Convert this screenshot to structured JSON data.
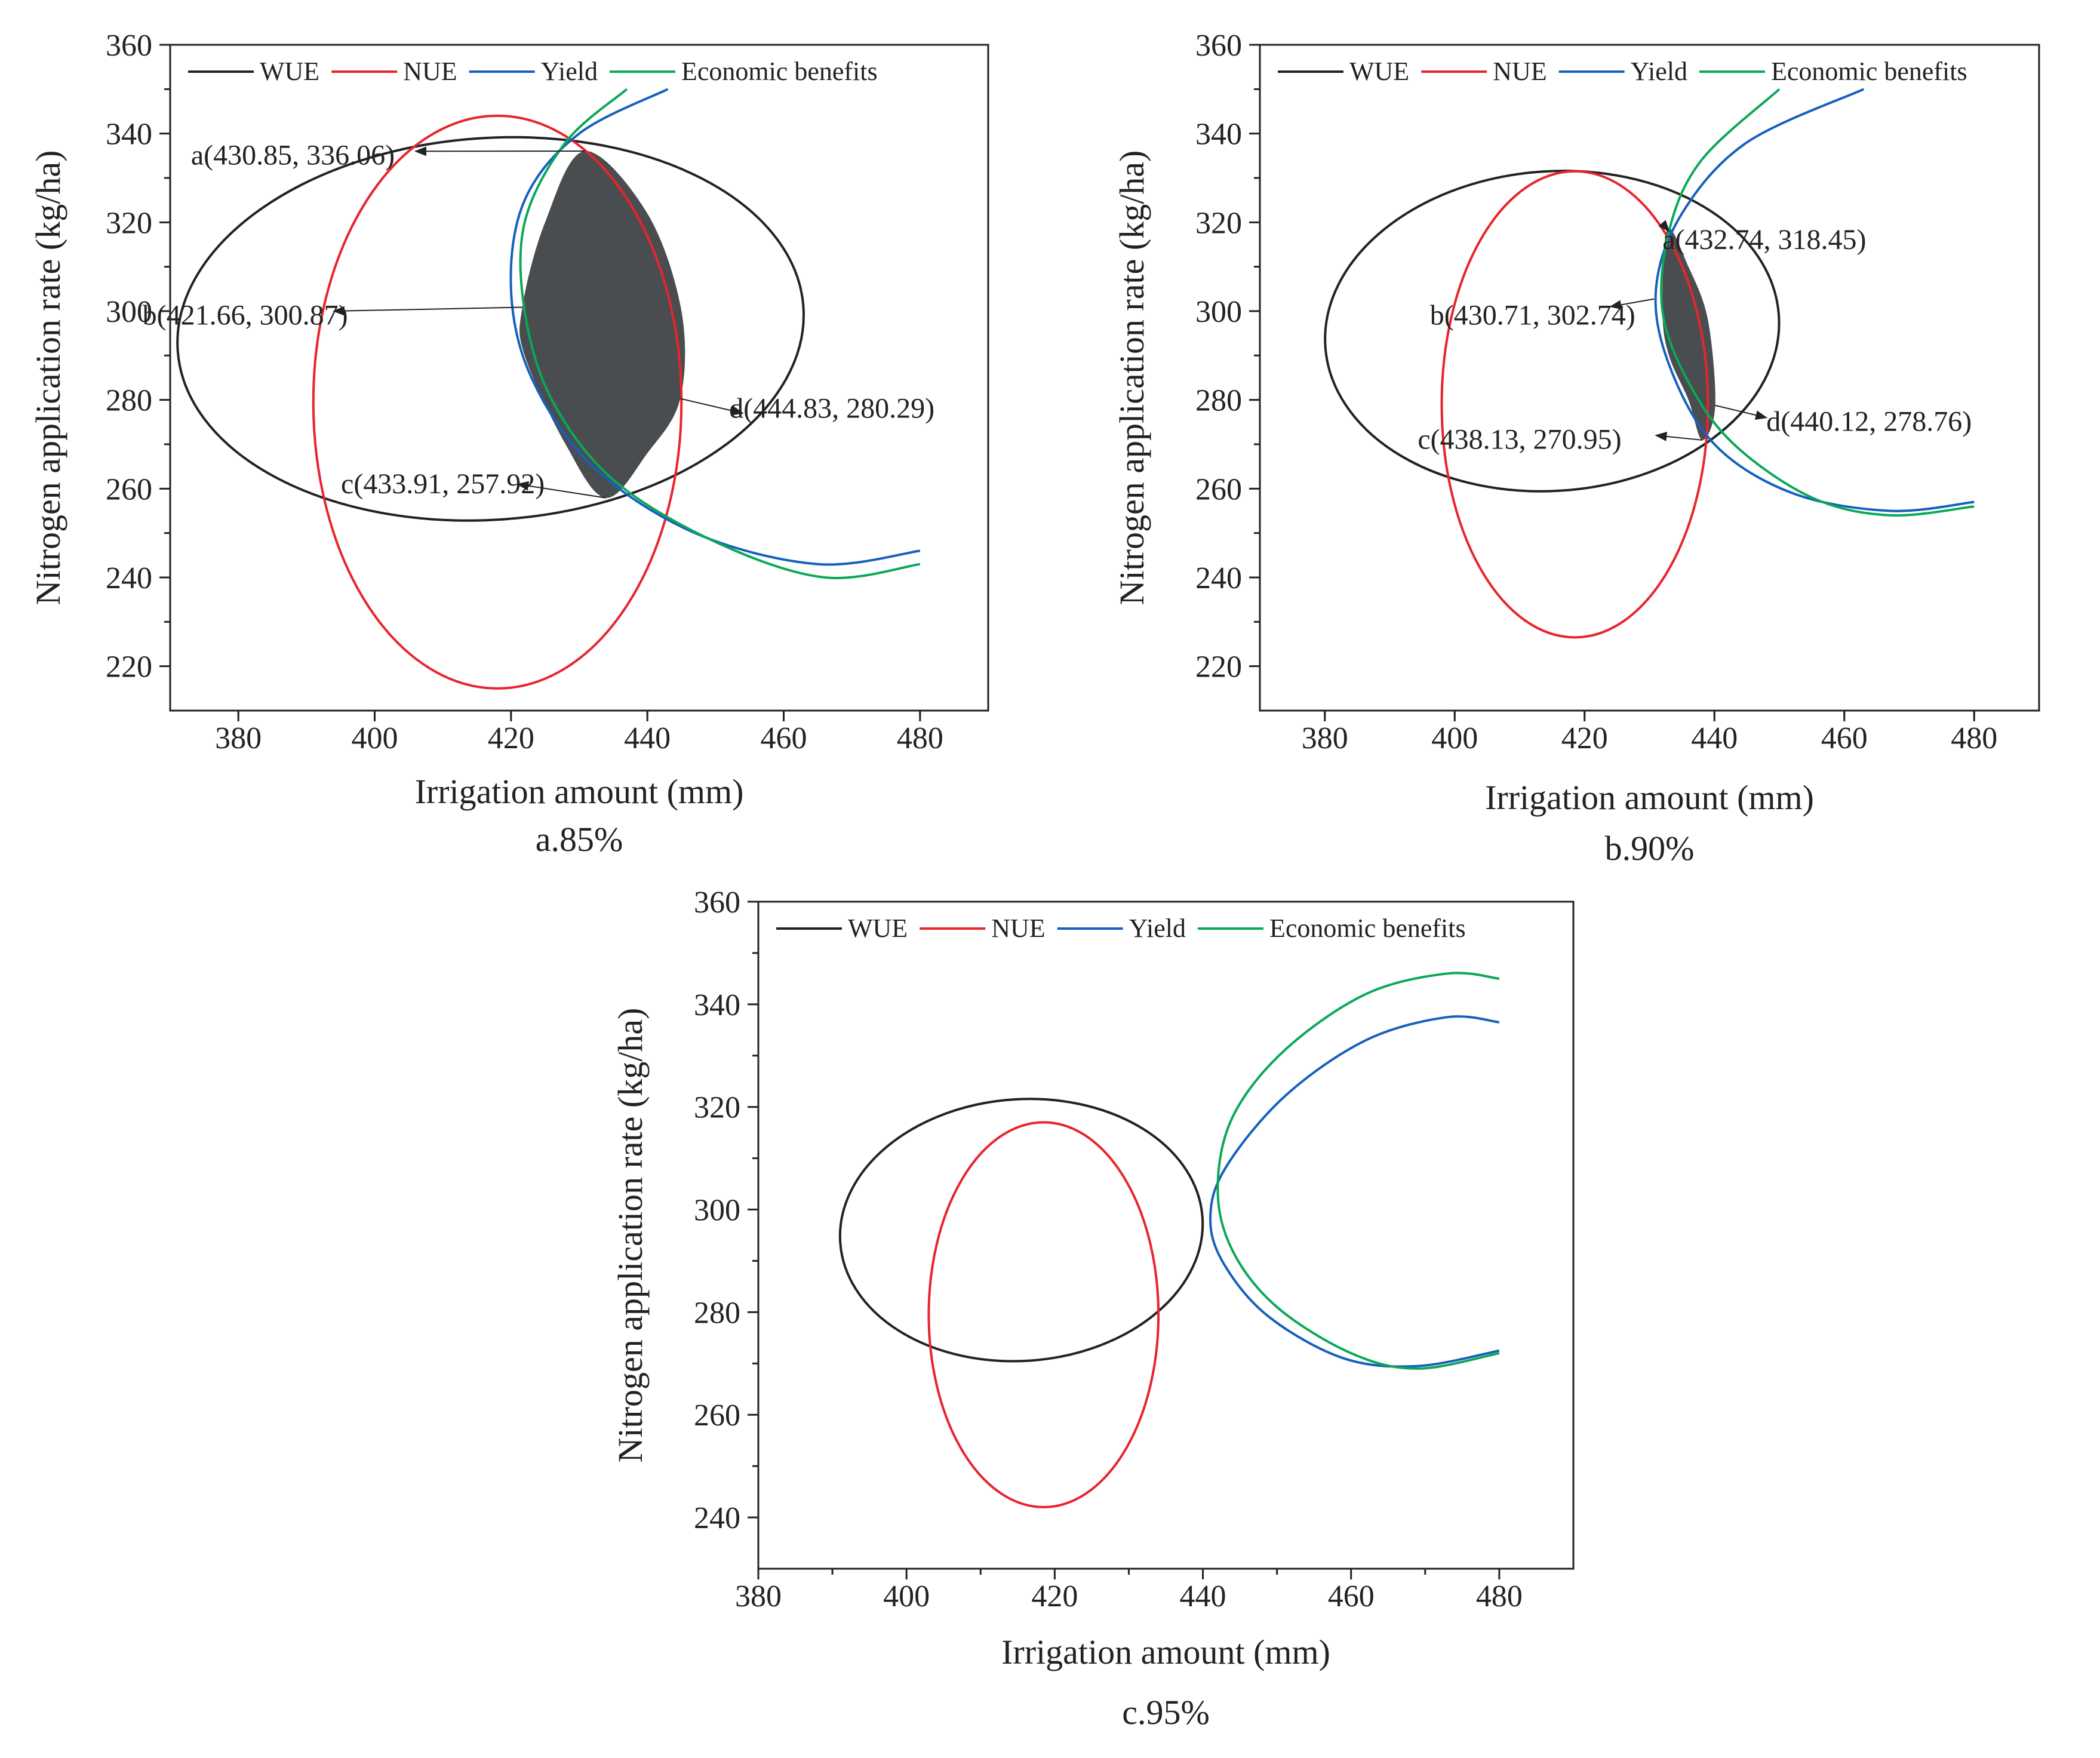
{
  "chart_data": [
    {
      "id": "a",
      "type": "line",
      "caption": "a.85%",
      "xlabel": "Irrigation amount (mm)",
      "ylabel": "Nitrogen application rate (kg/ha)",
      "xlim": [
        370,
        490
      ],
      "ylim": [
        210,
        360
      ],
      "xticks": [
        380,
        400,
        420,
        440,
        460,
        480
      ],
      "yticks": [
        220,
        240,
        260,
        280,
        300,
        320,
        340,
        360
      ],
      "legend": {
        "position": "top",
        "items": [
          {
            "name": "WUE",
            "color": "#222222"
          },
          {
            "name": "NUE",
            "color": "#e8242c"
          },
          {
            "name": "Yield",
            "color": "#1560bd"
          },
          {
            "name": "Economic benefits",
            "color": "#0aa858"
          }
        ]
      },
      "series": [
        {
          "name": "WUE",
          "shape": "ellipse",
          "center": [
            417,
            296
          ],
          "rx": 46,
          "ry": 43,
          "rotation_deg": -4
        },
        {
          "name": "NUE",
          "shape": "ellipse",
          "center": [
            418,
            279.5
          ],
          "rx": 27,
          "ry": 64.5,
          "rotation_deg": 0
        },
        {
          "name": "Yield",
          "shape": "curve",
          "points": [
            [
              443,
              350
            ],
            [
              430,
              340
            ],
            [
              422,
              325
            ],
            [
              420,
              305
            ],
            [
              423,
              285
            ],
            [
              432,
              265
            ],
            [
              447,
              250
            ],
            [
              465,
              243
            ],
            [
              480,
              246
            ]
          ]
        },
        {
          "name": "Economic benefits",
          "shape": "curve",
          "points": [
            [
              437,
              350
            ],
            [
              428,
              338
            ],
            [
              422,
              320
            ],
            [
              422,
              300
            ],
            [
              426,
              280
            ],
            [
              435,
              262
            ],
            [
              450,
              248
            ],
            [
              466,
              240
            ],
            [
              480,
              243
            ]
          ]
        }
      ],
      "feasible_region": [
        [
          430.85,
          336.06
        ],
        [
          440,
          322
        ],
        [
          445,
          300
        ],
        [
          444.83,
          280.29
        ],
        [
          440,
          268
        ],
        [
          433.91,
          257.92
        ],
        [
          428,
          270
        ],
        [
          422,
          290
        ],
        [
          421.66,
          300.87
        ],
        [
          425,
          320
        ]
      ],
      "annotations": [
        {
          "label": "a(430.85, 336.06)",
          "point": [
            430.85,
            336.06
          ],
          "text_at": [
            388,
            333
          ],
          "anchor": "middle",
          "arrow_to": [
            406,
            336
          ]
        },
        {
          "label": "b(421.66, 300.87)",
          "point": [
            421.66,
            300.87
          ],
          "text_at": [
            381,
            297
          ],
          "anchor": "middle",
          "arrow_to": [
            394,
            300
          ]
        },
        {
          "label": "c(433.91, 257.92)",
          "point": [
            433.91,
            257.92
          ],
          "text_at": [
            410,
            259
          ],
          "anchor": "middle",
          "arrow_to": [
            421,
            261
          ]
        },
        {
          "label": "d(444.83, 280.29)",
          "point": [
            444.83,
            280.29
          ],
          "text_at": [
            452,
            276
          ],
          "anchor": "start",
          "arrow_to": [
            454,
            277
          ]
        }
      ]
    },
    {
      "id": "b",
      "type": "line",
      "caption": "b.90%",
      "xlabel": "Irrigation amount (mm)",
      "ylabel": "Nitrogen application rate (kg/ha)",
      "xlim": [
        370,
        490
      ],
      "ylim": [
        210,
        360
      ],
      "xticks": [
        380,
        400,
        420,
        440,
        460,
        480
      ],
      "yticks": [
        220,
        240,
        260,
        280,
        300,
        320,
        340,
        360
      ],
      "legend": {
        "position": "top",
        "items": [
          {
            "name": "WUE",
            "color": "#222222"
          },
          {
            "name": "NUE",
            "color": "#e8242c"
          },
          {
            "name": "Yield",
            "color": "#1560bd"
          },
          {
            "name": "Economic benefits",
            "color": "#0aa858"
          }
        ]
      },
      "series": [
        {
          "name": "WUE",
          "shape": "ellipse",
          "center": [
            415,
            295.5
          ],
          "rx": 35,
          "ry": 36,
          "rotation_deg": -4
        },
        {
          "name": "NUE",
          "shape": "ellipse",
          "center": [
            418.5,
            279
          ],
          "rx": 20.5,
          "ry": 52.5,
          "rotation_deg": 0
        },
        {
          "name": "Yield",
          "shape": "curve",
          "points": [
            [
              463,
              350
            ],
            [
              445,
              338
            ],
            [
              435,
              322
            ],
            [
              431,
              305
            ],
            [
              433,
              288
            ],
            [
              440,
              270
            ],
            [
              452,
              259
            ],
            [
              467,
              255
            ],
            [
              480,
              257
            ]
          ]
        },
        {
          "name": "Economic benefits",
          "shape": "curve",
          "points": [
            [
              450,
              350
            ],
            [
              438,
              334
            ],
            [
              433,
              318
            ],
            [
              432,
              300
            ],
            [
              436,
              284
            ],
            [
              443,
              270
            ],
            [
              455,
              258
            ],
            [
              467,
              254
            ],
            [
              480,
              256
            ]
          ]
        }
      ],
      "feasible_region": [
        [
          432.74,
          318.45
        ],
        [
          436,
          310
        ],
        [
          439,
          298
        ],
        [
          440.12,
          278.76
        ],
        [
          438.13,
          270.95
        ],
        [
          436,
          280
        ],
        [
          433,
          290
        ],
        [
          432,
          300
        ]
      ],
      "annotations": [
        {
          "label": "a(432.74, 318.45)",
          "point": [
            432.74,
            318.45
          ],
          "text_at": [
            432,
            314
          ],
          "anchor": "start",
          "arrow_to": [
            433,
            318
          ]
        },
        {
          "label": "b(430.71, 302.74)",
          "point": [
            430.71,
            302.74
          ],
          "text_at": [
            412,
            297
          ],
          "anchor": "middle",
          "arrow_to": [
            424,
            301
          ]
        },
        {
          "label": "c(438.13, 270.95)",
          "point": [
            438.13,
            270.95
          ],
          "text_at": [
            410,
            269
          ],
          "anchor": "middle",
          "arrow_to": [
            431,
            272
          ]
        },
        {
          "label": "d(440.12, 278.76)",
          "point": [
            440.12,
            278.76
          ],
          "text_at": [
            448,
            273
          ],
          "anchor": "start",
          "arrow_to": [
            448,
            276
          ]
        }
      ]
    },
    {
      "id": "c",
      "type": "line",
      "caption": "c.95%",
      "xlabel": "Irrigation amount (mm)",
      "ylabel": "Nitrogen application rate (kg/ha)",
      "xlim": [
        380,
        490
      ],
      "ylim": [
        230,
        360
      ],
      "xticks": [
        380,
        400,
        420,
        440,
        460,
        480
      ],
      "yticks": [
        240,
        260,
        280,
        300,
        320,
        340,
        360
      ],
      "legend": {
        "position": "top",
        "items": [
          {
            "name": "WUE",
            "color": "#222222"
          },
          {
            "name": "NUE",
            "color": "#e8242c"
          },
          {
            "name": "Yield",
            "color": "#1560bd"
          },
          {
            "name": "Economic benefits",
            "color": "#0aa858"
          }
        ]
      },
      "series": [
        {
          "name": "WUE",
          "shape": "ellipse",
          "center": [
            415.5,
            296
          ],
          "rx": 24.5,
          "ry": 25.5,
          "rotation_deg": -4
        },
        {
          "name": "NUE",
          "shape": "ellipse",
          "center": [
            418.5,
            279.5
          ],
          "rx": 15.5,
          "ry": 37.5,
          "rotation_deg": 0
        },
        {
          "name": "Yield",
          "shape": "curve",
          "points": [
            [
              480,
              336.5
            ],
            [
              473,
              337.5
            ],
            [
              462,
              333
            ],
            [
              451,
              322
            ],
            [
              443,
              308
            ],
            [
              441,
              298
            ],
            [
              443,
              289
            ],
            [
              449,
              279
            ],
            [
              459,
              271
            ],
            [
              469,
              269.5
            ],
            [
              480,
              272.5
            ]
          ]
        },
        {
          "name": "Economic benefits",
          "shape": "curve",
          "points": [
            [
              480,
              345
            ],
            [
              473,
              346
            ],
            [
              462,
              342
            ],
            [
              451,
              331
            ],
            [
              444,
              318
            ],
            [
              442,
              304
            ],
            [
              444,
              292
            ],
            [
              450,
              281
            ],
            [
              460,
              272
            ],
            [
              469,
              269
            ],
            [
              480,
              272
            ]
          ]
        }
      ],
      "annotations": []
    }
  ]
}
